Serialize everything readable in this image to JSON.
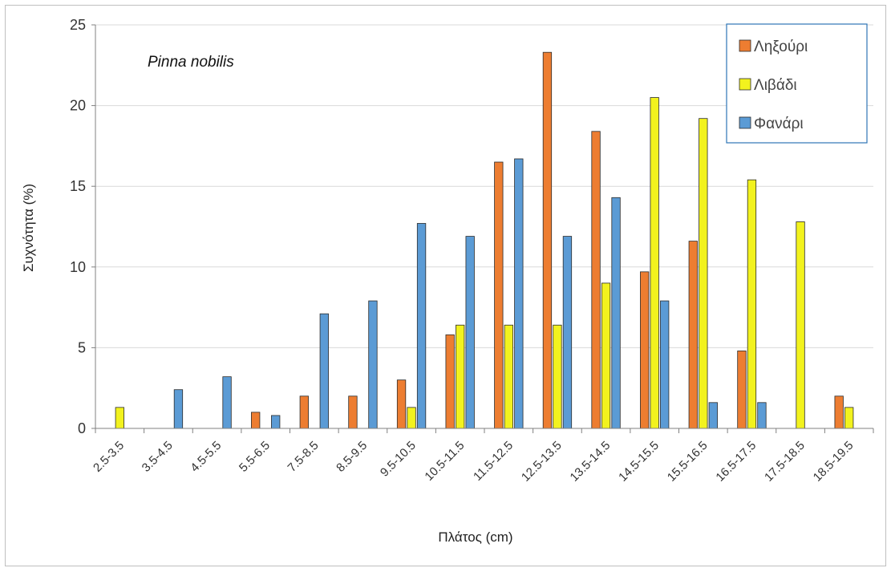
{
  "chart_data": {
    "type": "bar",
    "annotation": "Pinna nobilis",
    "xlabel": "Πλάτος (cm)",
    "ylabel": "Συχνότητα (%)",
    "ylim": [
      0,
      25
    ],
    "yticks": [
      0,
      5,
      10,
      15,
      20,
      25
    ],
    "grid": true,
    "legend_position": "top-right",
    "categories": [
      "2.5-3.5",
      "3.5-4.5",
      "4.5-5.5",
      "5.5-6.5",
      "7.5-8.5",
      "8.5-9.5",
      "9.5-10.5",
      "10.5-11.5",
      "11.5-12.5",
      "12.5-13.5",
      "13.5-14.5",
      "14.5-15.5",
      "15.5-16.5",
      "16.5-17.5",
      "17.5-18.5",
      "18.5-19.5"
    ],
    "series": [
      {
        "name": "Ληξούρι",
        "color": "#ED7D31",
        "values": [
          0,
          0,
          0,
          1.0,
          2.0,
          2.0,
          3.0,
          5.8,
          16.5,
          23.3,
          18.4,
          9.7,
          11.6,
          4.8,
          0,
          2.0
        ]
      },
      {
        "name": "Λιβάδι",
        "color": "#F2F21E",
        "values": [
          1.3,
          0,
          0,
          0,
          0,
          0,
          1.3,
          6.4,
          6.4,
          6.4,
          9.0,
          20.5,
          19.2,
          15.4,
          12.8,
          1.3
        ]
      },
      {
        "name": "Φανάρι",
        "color": "#5B9BD5",
        "values": [
          0,
          2.4,
          3.2,
          0.8,
          7.1,
          7.9,
          12.7,
          11.9,
          16.7,
          11.9,
          14.3,
          7.9,
          1.6,
          1.6,
          0,
          0
        ]
      }
    ]
  }
}
